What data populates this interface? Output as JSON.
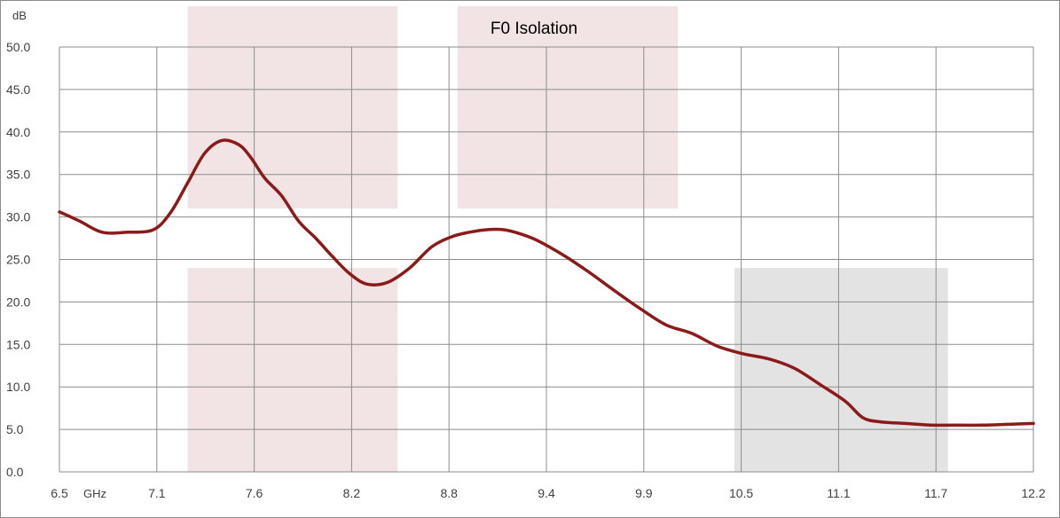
{
  "chart_data": {
    "type": "line",
    "title": "F0 Isolation",
    "ylabel": "dB",
    "xunit": "GHz",
    "xlim": [
      6.5,
      12.2
    ],
    "ylim": [
      0,
      50
    ],
    "grid": true,
    "x_tick_labels": [
      "6.5",
      "7.1",
      "7.6",
      "8.2",
      "8.8",
      "9.4",
      "9.9",
      "10.5",
      "11.1",
      "11.7",
      "12.2"
    ],
    "y_tick_labels": [
      "0.0",
      "5.0",
      "10.0",
      "15.0",
      "20.0",
      "25.0",
      "30.0",
      "35.0",
      "40.0",
      "45.0",
      "50.0"
    ],
    "highlight_bands": [
      {
        "x": [
          7.25,
          8.48
        ],
        "y": [
          31.0,
          55.0
        ],
        "color": "#f2e4e4"
      },
      {
        "x": [
          7.25,
          8.48
        ],
        "y": [
          0.0,
          24.0
        ],
        "color": "#f2e4e4"
      },
      {
        "x": [
          8.83,
          10.12
        ],
        "y": [
          31.0,
          55.0
        ],
        "color": "#f2e4e4"
      },
      {
        "x": [
          10.45,
          11.7
        ],
        "y": [
          0.0,
          24.0
        ],
        "color": "#e3e3e3"
      }
    ],
    "series": [
      {
        "color": "#8b1a1a",
        "x": [
          6.5,
          6.62,
          6.75,
          6.9,
          7.05,
          7.15,
          7.25,
          7.35,
          7.45,
          7.55,
          7.62,
          7.7,
          7.8,
          7.9,
          8.0,
          8.1,
          8.2,
          8.3,
          8.42,
          8.55,
          8.68,
          8.8,
          8.9,
          9.0,
          9.1,
          9.2,
          9.3,
          9.45,
          9.6,
          9.75,
          9.9,
          10.05,
          10.2,
          10.35,
          10.5,
          10.65,
          10.8,
          10.95,
          11.1,
          11.2,
          11.3,
          11.45,
          11.6,
          11.75,
          11.9,
          12.05,
          12.2
        ],
        "y": [
          30.6,
          29.5,
          28.2,
          28.2,
          28.5,
          30.5,
          34.0,
          37.5,
          39.0,
          38.5,
          37.0,
          34.6,
          32.5,
          29.5,
          27.5,
          25.3,
          23.3,
          22.1,
          22.3,
          24.0,
          26.5,
          27.7,
          28.2,
          28.5,
          28.5,
          28.0,
          27.2,
          25.5,
          23.5,
          21.3,
          19.2,
          17.3,
          16.3,
          14.8,
          13.9,
          13.3,
          12.2,
          10.3,
          8.3,
          6.4,
          5.9,
          5.7,
          5.5,
          5.5,
          5.5,
          5.6,
          5.7
        ]
      }
    ]
  }
}
